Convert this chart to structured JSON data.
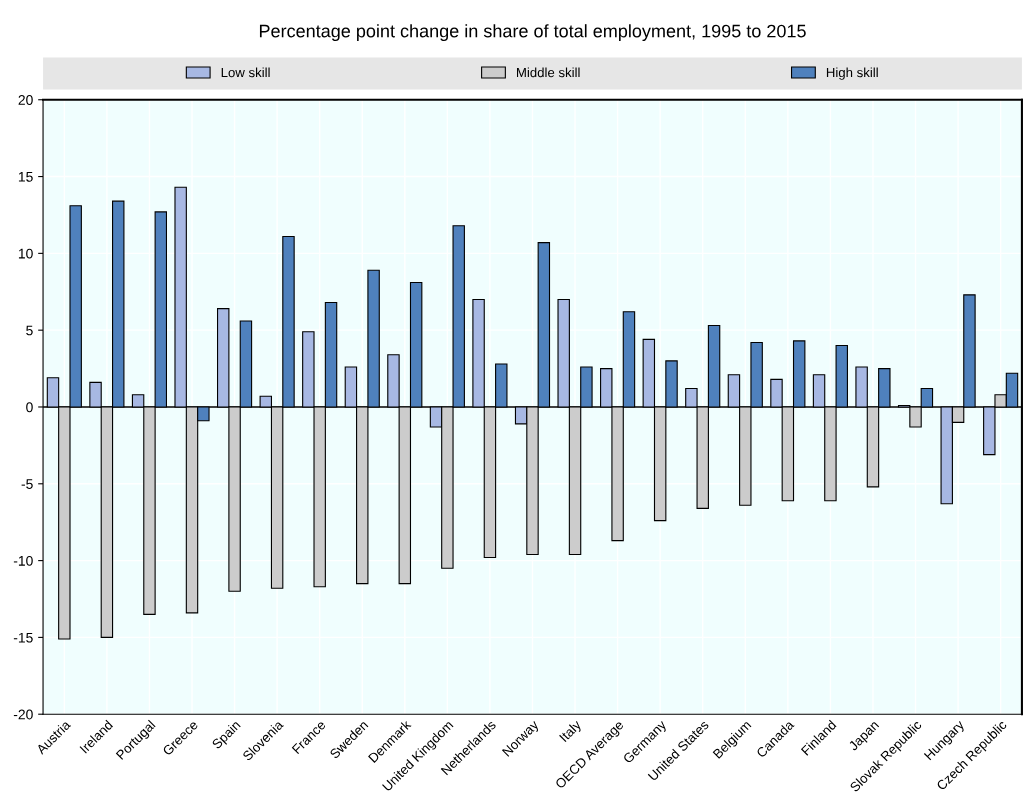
{
  "chart_data": {
    "type": "bar",
    "title": "Percentage point change in share of total employment, 1995 to 2015",
    "categories": [
      "Austria",
      "Ireland",
      "Portugal",
      "Greece",
      "Spain",
      "Slovenia",
      "France",
      "Sweden",
      "Denmark",
      "United Kingdom",
      "Netherlands",
      "Norway",
      "Italy",
      "OECD Average",
      "Germany",
      "United States",
      "Belgium",
      "Canada",
      "Finland",
      "Japan",
      "Slovak Republic",
      "Hungary",
      "Czech Republic"
    ],
    "series": [
      {
        "name": "Low skill",
        "color": "#a7b8e3",
        "values": [
          1.9,
          1.6,
          0.8,
          14.3,
          6.4,
          0.7,
          4.9,
          2.6,
          3.4,
          -1.3,
          7.0,
          -1.1,
          7.0,
          2.5,
          4.4,
          1.2,
          2.1,
          1.8,
          2.1,
          2.6,
          0.1,
          -6.3,
          -3.1
        ]
      },
      {
        "name": "Middle skill",
        "color": "#cccccc",
        "values": [
          -15.1,
          -15.0,
          -13.5,
          -13.4,
          -12.0,
          -11.8,
          -11.7,
          -11.5,
          -11.5,
          -10.5,
          -9.8,
          -9.6,
          -9.6,
          -8.7,
          -7.4,
          -6.6,
          -6.4,
          -6.1,
          -6.1,
          -5.2,
          -1.3,
          -1.0,
          0.8
        ]
      },
      {
        "name": "High skill",
        "color": "#4f81bd",
        "values": [
          13.1,
          13.4,
          12.7,
          -0.9,
          5.6,
          11.1,
          6.8,
          8.9,
          8.1,
          11.8,
          2.8,
          10.7,
          2.6,
          6.2,
          3.0,
          5.3,
          4.2,
          4.3,
          4.0,
          2.5,
          1.2,
          7.3,
          2.2
        ]
      }
    ],
    "ylim": [
      -20,
      20
    ],
    "yticks": [
      -20,
      -15,
      -10,
      -5,
      0,
      5,
      10,
      15,
      20
    ],
    "grid": true,
    "legend": "top"
  }
}
